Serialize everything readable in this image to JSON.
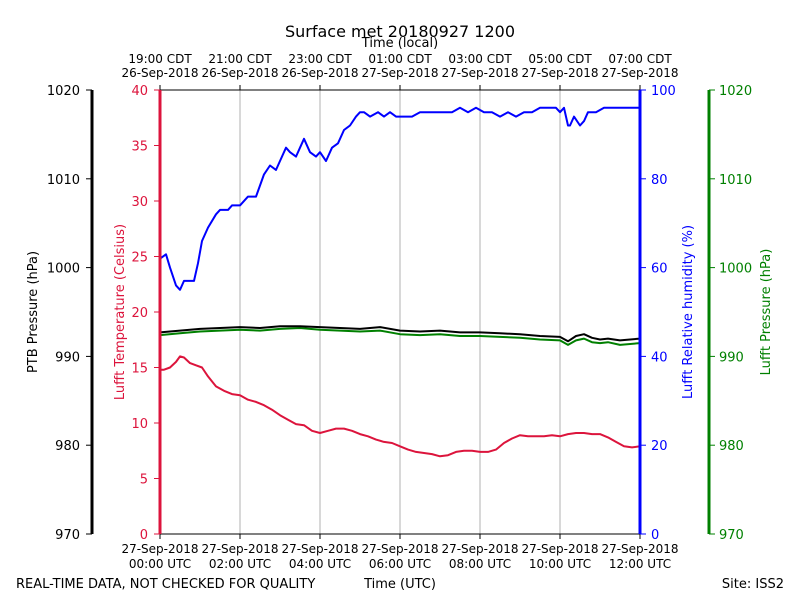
{
  "chart_data": {
    "type": "line",
    "title": "Surface met 20180927 1200",
    "top_axis_label": "Time (local)",
    "xlabel": "Time (UTC)",
    "footer_left": "REAL-TIME DATA, NOT CHECKED FOR QUALITY",
    "footer_right": "Site: ISS2",
    "x_range_hours_utc": [
      0,
      12
    ],
    "x_ticks_utc": [
      {
        "hour": 0,
        "line1": "27-Sep-2018",
        "line2": "00:00 UTC"
      },
      {
        "hour": 2,
        "line1": "27-Sep-2018",
        "line2": "02:00 UTC"
      },
      {
        "hour": 4,
        "line1": "27-Sep-2018",
        "line2": "04:00 UTC"
      },
      {
        "hour": 6,
        "line1": "27-Sep-2018",
        "line2": "06:00 UTC"
      },
      {
        "hour": 8,
        "line1": "27-Sep-2018",
        "line2": "08:00 UTC"
      },
      {
        "hour": 10,
        "line1": "27-Sep-2018",
        "line2": "10:00 UTC"
      },
      {
        "hour": 12,
        "line1": "27-Sep-2018",
        "line2": "12:00 UTC"
      }
    ],
    "x_ticks_local": [
      {
        "hour": 0,
        "line1": "19:00 CDT",
        "line2": "26-Sep-2018"
      },
      {
        "hour": 2,
        "line1": "21:00 CDT",
        "line2": "26-Sep-2018"
      },
      {
        "hour": 4,
        "line1": "23:00 CDT",
        "line2": "26-Sep-2018"
      },
      {
        "hour": 6,
        "line1": "01:00 CDT",
        "line2": "27-Sep-2018"
      },
      {
        "hour": 8,
        "line1": "03:00 CDT",
        "line2": "27-Sep-2018"
      },
      {
        "hour": 10,
        "line1": "05:00 CDT",
        "line2": "27-Sep-2018"
      },
      {
        "hour": 12,
        "line1": "07:00 CDT",
        "line2": "27-Sep-2018"
      }
    ],
    "axes": [
      {
        "id": "ptb",
        "label": "PTB Pressure (hPa)",
        "color": "#000000",
        "range": [
          970,
          1020
        ],
        "ticks": [
          970,
          980,
          990,
          1000,
          1010,
          1020
        ]
      },
      {
        "id": "temp",
        "label": "Lufft Temperature (Celsius)",
        "color": "#dc143c",
        "range": [
          0,
          40
        ],
        "ticks": [
          0,
          5,
          10,
          15,
          20,
          25,
          30,
          35,
          40
        ]
      },
      {
        "id": "rh",
        "label": "Lufft Relative humidity (%)",
        "color": "#0000ff",
        "range": [
          0,
          100
        ],
        "ticks": [
          0,
          20,
          40,
          60,
          80,
          100
        ]
      },
      {
        "id": "lp",
        "label": "Lufft Pressure (hPa)",
        "color": "#008000",
        "range": [
          970,
          1020
        ],
        "ticks": [
          970,
          980,
          990,
          1000,
          1010,
          1020
        ]
      }
    ],
    "series": [
      {
        "name": "Lufft Relative humidity",
        "axis": "rh",
        "color": "#0000ff",
        "x": [
          0,
          0.15,
          0.25,
          0.4,
          0.5,
          0.6,
          0.7,
          0.85,
          0.95,
          1.05,
          1.2,
          1.4,
          1.5,
          1.6,
          1.7,
          1.8,
          1.9,
          2.0,
          2.2,
          2.4,
          2.6,
          2.75,
          2.9,
          3.0,
          3.15,
          3.25,
          3.4,
          3.5,
          3.6,
          3.75,
          3.9,
          4.0,
          4.15,
          4.3,
          4.45,
          4.6,
          4.75,
          4.9,
          5.0,
          5.1,
          5.25,
          5.45,
          5.6,
          5.75,
          5.9,
          6.0,
          6.15,
          6.3,
          6.5,
          6.7,
          6.9,
          7.1,
          7.3,
          7.5,
          7.7,
          7.9,
          8.1,
          8.3,
          8.5,
          8.7,
          8.9,
          9.1,
          9.3,
          9.5,
          9.7,
          9.9,
          10.0,
          10.1,
          10.2,
          10.25,
          10.35,
          10.5,
          10.6,
          10.7,
          10.9,
          11.1,
          11.3,
          11.5,
          11.7,
          11.9,
          12.0
        ],
        "values": [
          62,
          63,
          60,
          56,
          55,
          57,
          57,
          57,
          61,
          66,
          69,
          72,
          73,
          73,
          73,
          74,
          74,
          74,
          76,
          76,
          81,
          83,
          82,
          84,
          87,
          86,
          85,
          87,
          89,
          86,
          85,
          86,
          84,
          87,
          88,
          91,
          92,
          94,
          95,
          95,
          94,
          95,
          94,
          95,
          94,
          94,
          94,
          94,
          95,
          95,
          95,
          95,
          95,
          96,
          95,
          96,
          95,
          95,
          94,
          95,
          94,
          95,
          95,
          96,
          96,
          96,
          95,
          96,
          92,
          92,
          94,
          92,
          93,
          95,
          95,
          96,
          96,
          96,
          96,
          96,
          96
        ]
      },
      {
        "name": "Lufft Temperature",
        "axis": "temp",
        "color": "#dc143c",
        "x": [
          0,
          0.1,
          0.25,
          0.4,
          0.5,
          0.6,
          0.75,
          0.9,
          1.05,
          1.2,
          1.4,
          1.6,
          1.8,
          2.0,
          2.2,
          2.4,
          2.6,
          2.8,
          3.0,
          3.2,
          3.4,
          3.6,
          3.8,
          4.0,
          4.2,
          4.4,
          4.6,
          4.8,
          5.0,
          5.2,
          5.4,
          5.6,
          5.8,
          6.0,
          6.2,
          6.4,
          6.6,
          6.8,
          7.0,
          7.2,
          7.4,
          7.6,
          7.8,
          8.0,
          8.2,
          8.4,
          8.6,
          8.8,
          9.0,
          9.2,
          9.4,
          9.6,
          9.8,
          10.0,
          10.2,
          10.4,
          10.6,
          10.8,
          11.0,
          11.2,
          11.4,
          11.6,
          11.8,
          12.0
        ],
        "values": [
          14.8,
          14.8,
          15.0,
          15.5,
          16.0,
          15.9,
          15.4,
          15.2,
          15.0,
          14.2,
          13.3,
          12.9,
          12.6,
          12.5,
          12.1,
          11.9,
          11.6,
          11.2,
          10.7,
          10.3,
          9.9,
          9.8,
          9.3,
          9.1,
          9.3,
          9.5,
          9.5,
          9.3,
          9.0,
          8.8,
          8.5,
          8.3,
          8.2,
          7.9,
          7.6,
          7.4,
          7.3,
          7.2,
          7.0,
          7.1,
          7.4,
          7.5,
          7.5,
          7.4,
          7.4,
          7.6,
          8.2,
          8.6,
          8.9,
          8.8,
          8.8,
          8.8,
          8.9,
          8.8,
          9.0,
          9.1,
          9.1,
          9.0,
          9.0,
          8.7,
          8.3,
          7.9,
          7.8,
          7.9
        ]
      },
      {
        "name": "Lufft Pressure",
        "axis": "lp",
        "color": "#008000",
        "x": [
          0,
          0.5,
          1.0,
          1.5,
          2.0,
          2.5,
          3.0,
          3.5,
          4.0,
          4.5,
          5.0,
          5.5,
          6.0,
          6.5,
          7.0,
          7.5,
          8.0,
          8.5,
          9.0,
          9.5,
          10.0,
          10.2,
          10.4,
          10.6,
          10.8,
          11.0,
          11.2,
          11.5,
          12.0
        ],
        "values": [
          992.4,
          992.6,
          992.8,
          992.9,
          993.0,
          992.9,
          993.1,
          993.2,
          993.0,
          992.9,
          992.8,
          992.9,
          992.5,
          992.4,
          992.5,
          992.3,
          992.3,
          992.2,
          992.1,
          991.9,
          991.8,
          991.3,
          991.8,
          992.0,
          991.6,
          991.5,
          991.6,
          991.3,
          991.5
        ]
      },
      {
        "name": "PTB Pressure",
        "axis": "ptb",
        "color": "#000000",
        "x": [
          0,
          0.5,
          1.0,
          1.5,
          2.0,
          2.5,
          3.0,
          3.5,
          4.0,
          4.5,
          5.0,
          5.5,
          6.0,
          6.5,
          7.0,
          7.5,
          8.0,
          8.5,
          9.0,
          9.5,
          10.0,
          10.2,
          10.4,
          10.6,
          10.8,
          11.0,
          11.2,
          11.5,
          12.0
        ],
        "values": [
          992.7,
          992.9,
          993.1,
          993.2,
          993.3,
          993.2,
          993.4,
          993.4,
          993.3,
          993.2,
          993.1,
          993.3,
          992.9,
          992.8,
          992.9,
          992.7,
          992.7,
          992.6,
          992.5,
          992.3,
          992.2,
          991.7,
          992.3,
          992.5,
          992.1,
          991.9,
          992.0,
          991.8,
          992.0
        ]
      }
    ]
  }
}
